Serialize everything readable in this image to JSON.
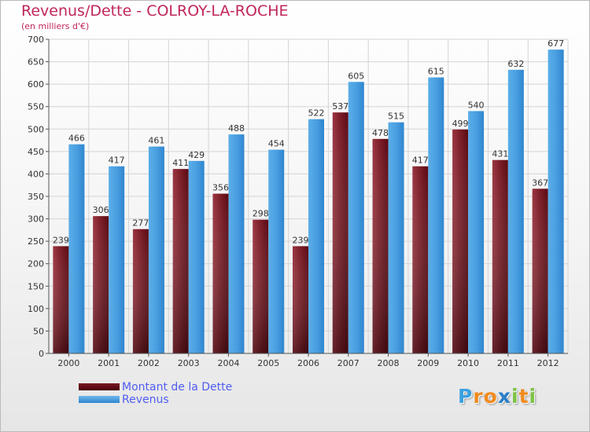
{
  "chart_data": {
    "type": "bar",
    "title": "Revenus/Dette - COLROY-LA-ROCHE",
    "subtitle": "(en milliers d'€)",
    "categories": [
      "2000",
      "2001",
      "2002",
      "2003",
      "2004",
      "2005",
      "2006",
      "2007",
      "2008",
      "2009",
      "2010",
      "2011",
      "2012"
    ],
    "series": [
      {
        "name": "Montant de la Dette",
        "values": [
          239,
          306,
          277,
          411,
          356,
          298,
          239,
          537,
          478,
          417,
          499,
          431,
          367
        ]
      },
      {
        "name": "Revenus",
        "values": [
          466,
          417,
          461,
          429,
          488,
          454,
          522,
          605,
          515,
          615,
          540,
          632,
          677
        ]
      }
    ],
    "ylim": [
      0,
      700
    ],
    "yticks": [
      0,
      50,
      100,
      150,
      200,
      250,
      300,
      350,
      400,
      450,
      500,
      550,
      600,
      650,
      700
    ],
    "grid": true,
    "legend": "bottom-left"
  },
  "colors": {
    "title": "#c0265a",
    "debt_top": "#8a2a33",
    "debt_bottom": "#4a0008",
    "revenue_top": "#70bcf0",
    "revenue_bottom": "#2a7fc8",
    "legend_text": "#4f5cf0"
  },
  "logo": {
    "letters": [
      "P",
      "r",
      "o",
      "x",
      "i",
      "t",
      "i"
    ],
    "colors": [
      "#3aa0e0",
      "#f08a1c",
      "#f08a1c",
      "#2a7fc8",
      "#7cc243",
      "#f08a1c",
      "#7cc243"
    ]
  }
}
